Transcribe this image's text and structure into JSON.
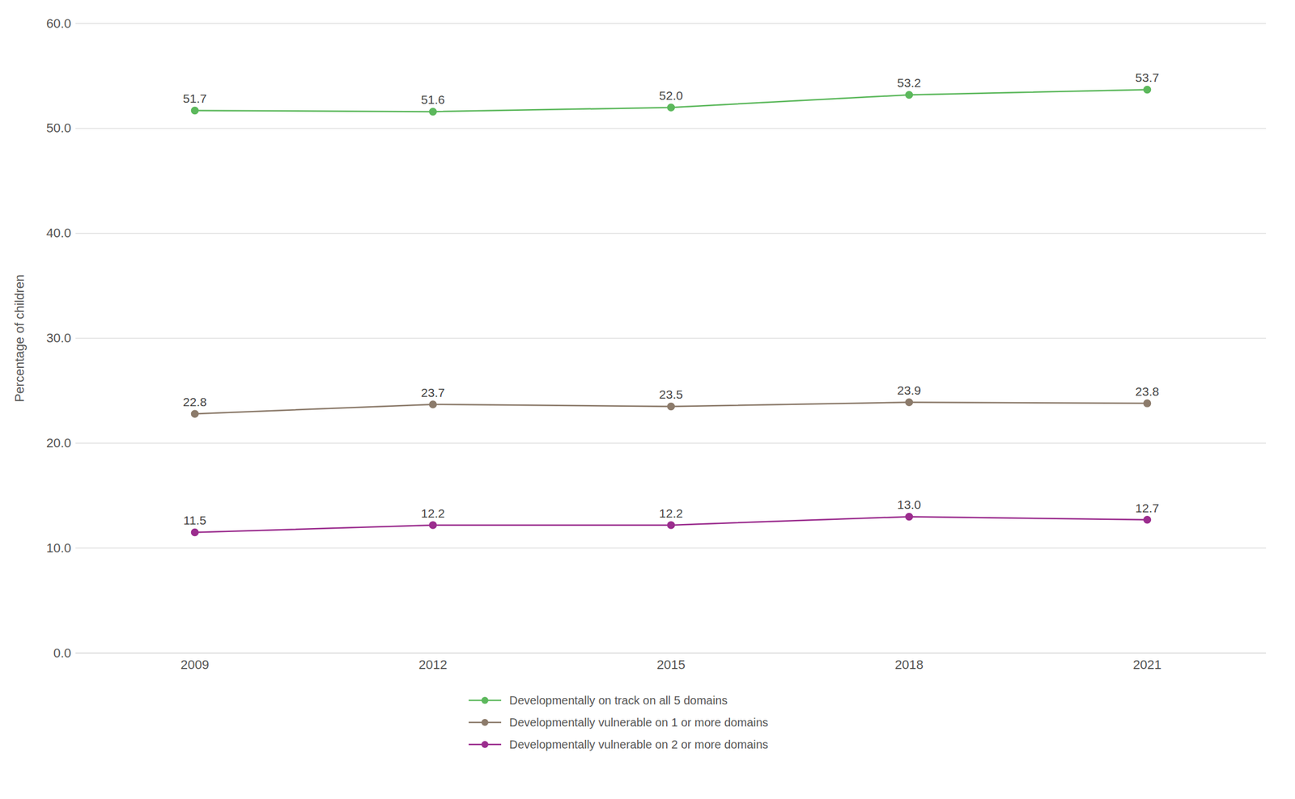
{
  "chart_data": {
    "type": "line",
    "x": [
      2009,
      2012,
      2015,
      2018,
      2021
    ],
    "xlim": [
      2007.5,
      2022.5
    ],
    "xticks": [
      2009,
      2012,
      2015,
      2018,
      2021
    ],
    "ylabel": "Percentage of children",
    "ylim": [
      0,
      60
    ],
    "yticks": [
      {
        "value": 0,
        "label": "0.0"
      },
      {
        "value": 10,
        "label": "10.0"
      },
      {
        "value": 20,
        "label": "20.0"
      },
      {
        "value": 30,
        "label": "30.0"
      },
      {
        "value": 40,
        "label": "40.0"
      },
      {
        "value": 50,
        "label": "50.0"
      },
      {
        "value": 60,
        "label": "60.0"
      }
    ],
    "grid": "y",
    "legend": "bottom",
    "data_labels": true,
    "series": [
      {
        "name": "Developmentally on track on all 5 domains",
        "color": "#5cb85c",
        "marker": "circle",
        "values": [
          51.7,
          51.6,
          52.0,
          53.2,
          53.7
        ],
        "value_labels": [
          "51.7",
          "51.6",
          "52.0",
          "53.2",
          "53.7"
        ]
      },
      {
        "name": "Developmentally vulnerable on 1 or more domains",
        "color": "#8c7b6b",
        "marker": "circle",
        "values": [
          22.8,
          23.7,
          23.5,
          23.9,
          23.8
        ],
        "value_labels": [
          "22.8",
          "23.7",
          "23.5",
          "23.9",
          "23.8"
        ]
      },
      {
        "name": "Developmentally vulnerable on 2 or more domains",
        "color": "#9b2d8e",
        "marker": "circle",
        "values": [
          11.5,
          12.2,
          12.2,
          13.0,
          12.7
        ],
        "value_labels": [
          "11.5",
          "12.2",
          "12.2",
          "13.0",
          "12.7"
        ]
      }
    ]
  }
}
